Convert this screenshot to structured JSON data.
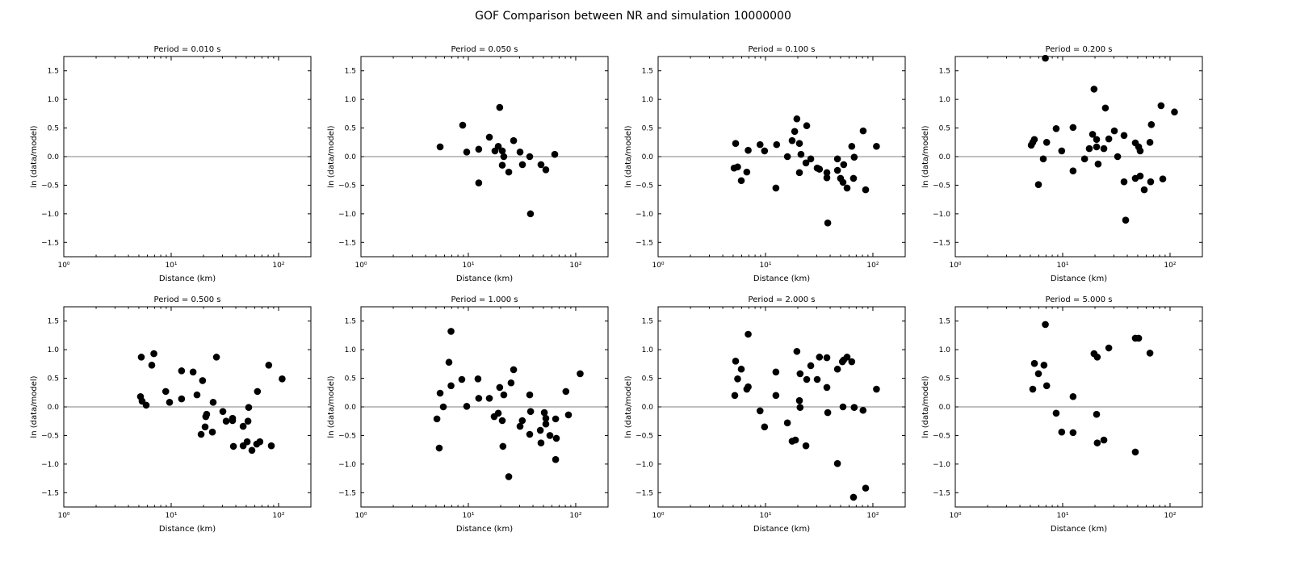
{
  "chart_data": {
    "type": "scatter",
    "title": "GOF Comparison between NR and simulation 10000000",
    "xlabel": "Distance (km)",
    "ylabel": "ln (data/model)",
    "xscale": "log",
    "xlim": [
      1,
      200
    ],
    "ylim": [
      -1.75,
      1.75
    ],
    "xtick_values": [
      1,
      10,
      100
    ],
    "xtick_labels": [
      "10⁰",
      "10¹",
      "10²"
    ],
    "ytick_values": [
      1.5,
      1.0,
      0.5,
      0.0,
      -0.5,
      -1.0,
      -1.5
    ],
    "ytick_labels": [
      "1.5",
      "1.0",
      "0.5",
      "0.0",
      "−0.5",
      "−1.0",
      "−1.5"
    ],
    "reference_line_y": 0,
    "colors": {
      "points": "#000000",
      "reference_line": "#808080"
    },
    "panels": [
      {
        "title": "Period = 0.010 s",
        "points": []
      },
      {
        "title": "Period = 0.050 s",
        "points": [
          [
            5.46,
            0.17
          ],
          [
            8.86,
            0.55
          ],
          [
            9.66,
            0.08
          ],
          [
            12.5,
            0.13
          ],
          [
            12.5,
            -0.46
          ],
          [
            15.7,
            0.34
          ],
          [
            17.7,
            0.1
          ],
          [
            19.0,
            0.18
          ],
          [
            19.6,
            0.86
          ],
          [
            20.7,
            0.1
          ],
          [
            20.7,
            -0.15
          ],
          [
            21.4,
            0.0
          ],
          [
            23.8,
            -0.27
          ],
          [
            26.4,
            0.28
          ],
          [
            30.3,
            0.08
          ],
          [
            31.9,
            -0.14
          ],
          [
            37.3,
            0.0
          ],
          [
            37.9,
            -1.0
          ],
          [
            47.5,
            -0.14
          ],
          [
            52.7,
            -0.23
          ],
          [
            63.8,
            0.04
          ]
        ]
      },
      {
        "title": "Period = 0.100 s",
        "points": [
          [
            5.27,
            0.23
          ],
          [
            5.1,
            -0.2
          ],
          [
            5.5,
            -0.18
          ],
          [
            5.95,
            -0.42
          ],
          [
            6.7,
            -0.27
          ],
          [
            6.9,
            0.11
          ],
          [
            8.9,
            0.21
          ],
          [
            9.8,
            0.1
          ],
          [
            12.5,
            -0.55
          ],
          [
            12.7,
            0.21
          ],
          [
            16,
            0.0
          ],
          [
            17.7,
            0.28
          ],
          [
            18.7,
            0.44
          ],
          [
            19.6,
            0.66
          ],
          [
            20.7,
            0.23
          ],
          [
            20.7,
            -0.28
          ],
          [
            21.4,
            0.04
          ],
          [
            24.2,
            0.54
          ],
          [
            23.8,
            -0.11
          ],
          [
            26.4,
            -0.04
          ],
          [
            30.3,
            -0.2
          ],
          [
            31.8,
            -0.22
          ],
          [
            37.3,
            -0.28
          ],
          [
            37.3,
            -0.37
          ],
          [
            38,
            -1.16
          ],
          [
            46.8,
            -0.04
          ],
          [
            46.8,
            -0.24
          ],
          [
            50,
            -0.38
          ],
          [
            52.7,
            -0.45
          ],
          [
            53.5,
            -0.14
          ],
          [
            57.5,
            -0.55
          ],
          [
            63.6,
            0.18
          ],
          [
            66,
            -0.38
          ],
          [
            67,
            -0.01
          ],
          [
            81.2,
            0.45
          ],
          [
            85.6,
            -0.58
          ],
          [
            108,
            0.18
          ]
        ]
      },
      {
        "title": "Period = 0.200 s",
        "points": [
          [
            5.1,
            0.2
          ],
          [
            5.27,
            0.25
          ],
          [
            5.45,
            0.3
          ],
          [
            5.95,
            -0.49
          ],
          [
            6.6,
            -0.04
          ],
          [
            6.9,
            1.72
          ],
          [
            7.1,
            0.25
          ],
          [
            8.7,
            0.49
          ],
          [
            9.8,
            0.1
          ],
          [
            12.5,
            0.51
          ],
          [
            12.5,
            -0.25
          ],
          [
            16,
            -0.04
          ],
          [
            17.7,
            0.14
          ],
          [
            19,
            0.39
          ],
          [
            19.6,
            1.18
          ],
          [
            20.7,
            0.3
          ],
          [
            20.7,
            0.17
          ],
          [
            21.4,
            -0.13
          ],
          [
            24.2,
            0.14
          ],
          [
            25,
            0.85
          ],
          [
            26.9,
            0.31
          ],
          [
            30.3,
            0.45
          ],
          [
            32.5,
            0.0
          ],
          [
            37.3,
            0.37
          ],
          [
            37.3,
            -0.44
          ],
          [
            38.6,
            -1.11
          ],
          [
            47.5,
            0.24
          ],
          [
            47.5,
            -0.38
          ],
          [
            51,
            0.17
          ],
          [
            52.7,
            0.1
          ],
          [
            52.7,
            -0.34
          ],
          [
            57.5,
            -0.58
          ],
          [
            65,
            0.25
          ],
          [
            67,
            0.56
          ],
          [
            66,
            -0.44
          ],
          [
            82.5,
            0.89
          ],
          [
            85.6,
            -0.39
          ],
          [
            110,
            0.78
          ]
        ]
      },
      {
        "title": "Period = 0.500 s",
        "points": [
          [
            5.18,
            0.18
          ],
          [
            5.36,
            0.1
          ],
          [
            5.27,
            0.87
          ],
          [
            5.85,
            0.03
          ],
          [
            6.6,
            0.73
          ],
          [
            6.9,
            0.93
          ],
          [
            8.9,
            0.27
          ],
          [
            9.66,
            0.08
          ],
          [
            12.5,
            0.63
          ],
          [
            12.5,
            0.14
          ],
          [
            16,
            0.61
          ],
          [
            17.4,
            0.21
          ],
          [
            19,
            -0.48
          ],
          [
            19.6,
            0.46
          ],
          [
            20.7,
            -0.35
          ],
          [
            21,
            -0.17
          ],
          [
            21.4,
            -0.13
          ],
          [
            24.2,
            -0.44
          ],
          [
            24.6,
            0.08
          ],
          [
            26.4,
            0.87
          ],
          [
            30.3,
            -0.08
          ],
          [
            32.5,
            -0.25
          ],
          [
            37.3,
            -0.2
          ],
          [
            37.3,
            -0.24
          ],
          [
            38,
            -0.69
          ],
          [
            46.8,
            -0.34
          ],
          [
            46.8,
            -0.68
          ],
          [
            51,
            -0.61
          ],
          [
            51.9,
            -0.25
          ],
          [
            52.7,
            -0.01
          ],
          [
            56.5,
            -0.76
          ],
          [
            62.6,
            -0.65
          ],
          [
            63.6,
            0.27
          ],
          [
            67,
            -0.61
          ],
          [
            81,
            0.73
          ],
          [
            85.6,
            -0.68
          ],
          [
            108,
            0.49
          ]
        ]
      },
      {
        "title": "Period = 1.000 s",
        "points": [
          [
            5.1,
            -0.21
          ],
          [
            5.36,
            -0.72
          ],
          [
            5.46,
            0.24
          ],
          [
            5.85,
            0.0
          ],
          [
            6.6,
            0.78
          ],
          [
            6.9,
            1.32
          ],
          [
            6.9,
            0.37
          ],
          [
            8.7,
            0.48
          ],
          [
            9.66,
            0.01
          ],
          [
            12.3,
            0.49
          ],
          [
            12.5,
            0.15
          ],
          [
            15.7,
            0.15
          ],
          [
            17.4,
            -0.17
          ],
          [
            19,
            -0.11
          ],
          [
            19.6,
            0.34
          ],
          [
            20.7,
            -0.24
          ],
          [
            21,
            -0.69
          ],
          [
            21.4,
            0.21
          ],
          [
            23.8,
            -1.22
          ],
          [
            25,
            0.42
          ],
          [
            26.4,
            0.65
          ],
          [
            30.3,
            -0.34
          ],
          [
            31.8,
            -0.24
          ],
          [
            37.3,
            0.21
          ],
          [
            37.3,
            -0.48
          ],
          [
            38,
            -0.08
          ],
          [
            46.8,
            -0.41
          ],
          [
            47.5,
            -0.63
          ],
          [
            51,
            -0.1
          ],
          [
            52.7,
            -0.2
          ],
          [
            52.7,
            -0.3
          ],
          [
            57.5,
            -0.5
          ],
          [
            65,
            -0.21
          ],
          [
            66,
            -0.55
          ],
          [
            65,
            -0.92
          ],
          [
            81,
            0.27
          ],
          [
            85.6,
            -0.14
          ],
          [
            110,
            0.58
          ]
        ]
      },
      {
        "title": "Period = 2.000 s",
        "points": [
          [
            5.18,
            0.2
          ],
          [
            5.27,
            0.8
          ],
          [
            5.5,
            0.49
          ],
          [
            5.95,
            0.66
          ],
          [
            6.7,
            0.31
          ],
          [
            6.9,
            0.35
          ],
          [
            6.9,
            1.27
          ],
          [
            8.9,
            -0.07
          ],
          [
            9.8,
            -0.35
          ],
          [
            12.5,
            0.61
          ],
          [
            12.5,
            0.2
          ],
          [
            16,
            -0.28
          ],
          [
            17.7,
            -0.6
          ],
          [
            19,
            -0.58
          ],
          [
            19.6,
            0.97
          ],
          [
            20.7,
            0.11
          ],
          [
            21,
            -0.01
          ],
          [
            21,
            0.58
          ],
          [
            23.8,
            -0.68
          ],
          [
            24.2,
            0.48
          ],
          [
            26.4,
            0.72
          ],
          [
            30.3,
            0.48
          ],
          [
            31.8,
            0.87
          ],
          [
            37.3,
            0.86
          ],
          [
            37.3,
            0.34
          ],
          [
            38,
            -0.1
          ],
          [
            46.8,
            -0.99
          ],
          [
            46.8,
            0.66
          ],
          [
            52,
            0.79
          ],
          [
            52.7,
            0.0
          ],
          [
            53.5,
            0.82
          ],
          [
            57.5,
            0.87
          ],
          [
            63.6,
            0.79
          ],
          [
            66,
            -1.58
          ],
          [
            67,
            -0.01
          ],
          [
            81,
            -0.06
          ],
          [
            85.6,
            -1.42
          ],
          [
            108,
            0.31
          ]
        ]
      },
      {
        "title": "Period = 5.000 s",
        "points": [
          [
            5.27,
            0.31
          ],
          [
            5.46,
            0.76
          ],
          [
            5.95,
            0.58
          ],
          [
            6.7,
            0.73
          ],
          [
            6.9,
            1.44
          ],
          [
            7.1,
            0.37
          ],
          [
            8.7,
            -0.11
          ],
          [
            9.8,
            -0.44
          ],
          [
            12.5,
            0.18
          ],
          [
            12.5,
            -0.45
          ],
          [
            19.6,
            0.93
          ],
          [
            20.7,
            -0.13
          ],
          [
            21,
            0.87
          ],
          [
            21,
            -0.63
          ],
          [
            24.2,
            -0.58
          ],
          [
            26.9,
            1.03
          ],
          [
            47.5,
            1.2
          ],
          [
            51,
            1.2
          ],
          [
            47.5,
            -0.79
          ],
          [
            65,
            0.94
          ]
        ]
      }
    ]
  }
}
